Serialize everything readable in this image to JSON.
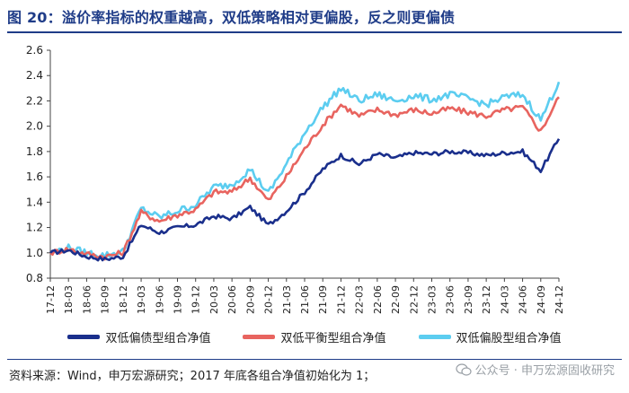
{
  "figure": {
    "title": "图 20：溢价率指标的权重越高，双低策略相对更偏股，反之则更偏债",
    "source": "资料来源：Wind，申万宏源研究；2017 年底各组合净值初始化为 1；",
    "watermark": "公众号 · 申万宏源固收研究"
  },
  "chart_data": {
    "type": "line",
    "title": "",
    "xlabel": "",
    "ylabel": "",
    "ylim": [
      0.8,
      2.6
    ],
    "yticks": [
      "0.8",
      "1.0",
      "1.2",
      "1.4",
      "1.6",
      "1.8",
      "2.0",
      "2.2",
      "2.4",
      "2.6"
    ],
    "grid": false,
    "legend_position": "bottom",
    "x": [
      "17-12",
      "18-03",
      "18-06",
      "18-09",
      "18-12",
      "19-03",
      "19-06",
      "19-09",
      "19-12",
      "20-03",
      "20-06",
      "20-09",
      "20-12",
      "21-03",
      "21-06",
      "21-09",
      "21-12",
      "22-03",
      "22-06",
      "22-09",
      "22-12",
      "23-03",
      "23-06",
      "23-09",
      "23-12",
      "24-03",
      "24-06",
      "24-09",
      "24-12"
    ],
    "series": [
      {
        "name": "双低偏债型组合净值",
        "color": "#1a2f8c",
        "values": [
          1.0,
          1.02,
          0.97,
          0.95,
          0.97,
          1.22,
          1.16,
          1.2,
          1.22,
          1.29,
          1.27,
          1.36,
          1.22,
          1.33,
          1.48,
          1.66,
          1.77,
          1.7,
          1.78,
          1.75,
          1.79,
          1.78,
          1.8,
          1.79,
          1.77,
          1.79,
          1.8,
          1.65,
          1.9
        ]
      },
      {
        "name": "双低平衡型组合净值",
        "color": "#e8645f",
        "values": [
          1.0,
          1.03,
          0.99,
          0.97,
          1.0,
          1.32,
          1.25,
          1.3,
          1.34,
          1.48,
          1.48,
          1.59,
          1.41,
          1.6,
          1.82,
          2.01,
          2.17,
          2.08,
          2.13,
          2.09,
          2.13,
          2.1,
          2.14,
          2.11,
          2.08,
          2.13,
          2.15,
          1.96,
          2.23
        ]
      },
      {
        "name": "双低偏股型组合净值",
        "color": "#5ccdf0",
        "values": [
          1.0,
          1.04,
          1.0,
          0.98,
          1.01,
          1.35,
          1.28,
          1.33,
          1.38,
          1.52,
          1.54,
          1.66,
          1.47,
          1.7,
          1.95,
          2.15,
          2.3,
          2.2,
          2.25,
          2.2,
          2.24,
          2.21,
          2.25,
          2.22,
          2.17,
          2.23,
          2.25,
          2.05,
          2.35
        ]
      }
    ]
  }
}
